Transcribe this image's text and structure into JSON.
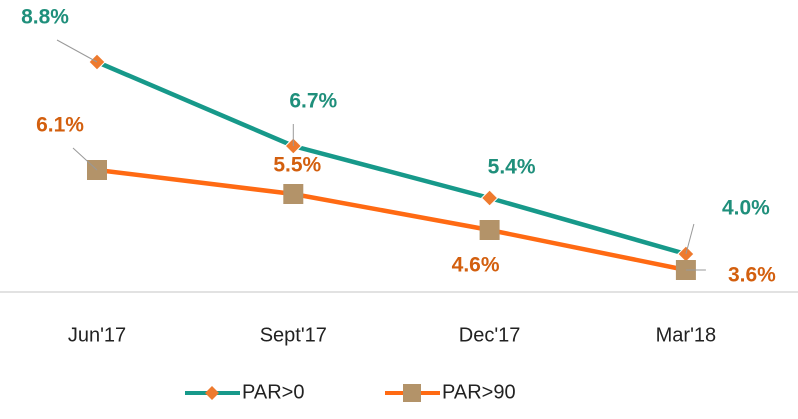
{
  "chart_data": {
    "type": "line",
    "categories": [
      "Jun'17",
      "Sept'17",
      "Dec'17",
      "Mar'18"
    ],
    "series": [
      {
        "name": "PAR>0",
        "color": "#17998a",
        "marker_color": "#ee7a2e",
        "label_color": "#1f8f7b",
        "values": [
          8.8,
          6.7,
          5.4,
          4.0
        ],
        "value_labels": [
          "8.8%",
          "6.7%",
          "5.4%",
          "4.0%"
        ]
      },
      {
        "name": "PAR>90",
        "color": "#ff6a13",
        "marker_color": "#b39369",
        "label_color": "#d35f0e",
        "values": [
          6.1,
          5.5,
          4.6,
          3.6
        ],
        "value_labels": [
          "6.1%",
          "5.5%",
          "4.6%",
          "3.6%"
        ]
      }
    ]
  }
}
